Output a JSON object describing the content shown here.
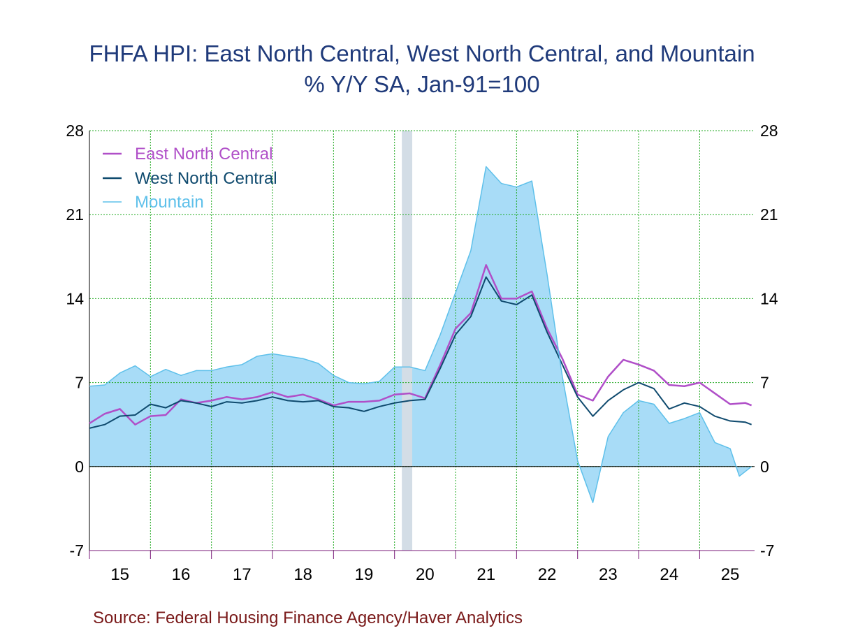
{
  "chart_data": {
    "type": "line",
    "title": "FHFA HPI: East North Central, West North Central, and Mountain",
    "subtitle": "% Y/Y      SA, Jan-91=100",
    "source": "Source:  Federal Housing Finance Agency/Haver Analytics",
    "x_tick_labels": [
      "15",
      "16",
      "17",
      "18",
      "19",
      "20",
      "21",
      "22",
      "23",
      "24",
      "25"
    ],
    "x_range": [
      2015.0,
      2025.9
    ],
    "ylim": [
      -7,
      28
    ],
    "y_ticks": [
      28,
      21,
      14,
      7,
      0,
      -7
    ],
    "y_tick_labels": [
      "28",
      "21",
      "14",
      "7",
      "0",
      "-7"
    ],
    "grid": true,
    "legend_position": "top-left",
    "recession_band": [
      2020.12,
      2020.29
    ],
    "colors": {
      "east_north_central": "#b04fc8",
      "west_north_central": "#0f4a6e",
      "mountain_line": "#5ec0ea",
      "mountain_fill": "#a8dcf7",
      "recession": "#d3dde6",
      "grid": "#22aa22",
      "title": "#1f3a7a",
      "source": "#7a1a1a"
    },
    "series": [
      {
        "name": "East North Central",
        "key": "east_north_central",
        "points": [
          [
            2015.0,
            3.6
          ],
          [
            2015.25,
            4.4
          ],
          [
            2015.5,
            4.8
          ],
          [
            2015.75,
            3.5
          ],
          [
            2016.0,
            4.2
          ],
          [
            2016.25,
            4.3
          ],
          [
            2016.5,
            5.6
          ],
          [
            2016.75,
            5.3
          ],
          [
            2017.0,
            5.5
          ],
          [
            2017.25,
            5.8
          ],
          [
            2017.5,
            5.6
          ],
          [
            2017.75,
            5.8
          ],
          [
            2018.0,
            6.2
          ],
          [
            2018.25,
            5.8
          ],
          [
            2018.5,
            6.0
          ],
          [
            2018.75,
            5.6
          ],
          [
            2019.0,
            5.1
          ],
          [
            2019.25,
            5.4
          ],
          [
            2019.5,
            5.4
          ],
          [
            2019.75,
            5.5
          ],
          [
            2020.0,
            6.0
          ],
          [
            2020.25,
            6.1
          ],
          [
            2020.5,
            5.7
          ],
          [
            2020.75,
            8.5
          ],
          [
            2021.0,
            11.5
          ],
          [
            2021.25,
            12.8
          ],
          [
            2021.5,
            16.8
          ],
          [
            2021.75,
            14.0
          ],
          [
            2022.0,
            14.0
          ],
          [
            2022.25,
            14.6
          ],
          [
            2022.5,
            11.5
          ],
          [
            2022.75,
            9.0
          ],
          [
            2023.0,
            6.0
          ],
          [
            2023.25,
            5.5
          ],
          [
            2023.5,
            7.5
          ],
          [
            2023.75,
            8.9
          ],
          [
            2024.0,
            8.5
          ],
          [
            2024.25,
            8.0
          ],
          [
            2024.5,
            6.8
          ],
          [
            2024.75,
            6.7
          ],
          [
            2025.0,
            7.0
          ],
          [
            2025.25,
            6.1
          ],
          [
            2025.5,
            5.2
          ],
          [
            2025.75,
            5.3
          ],
          [
            2025.85,
            5.1
          ]
        ]
      },
      {
        "name": "West North Central",
        "key": "west_north_central",
        "points": [
          [
            2015.0,
            3.2
          ],
          [
            2015.25,
            3.5
          ],
          [
            2015.5,
            4.2
          ],
          [
            2015.75,
            4.3
          ],
          [
            2016.0,
            5.2
          ],
          [
            2016.25,
            4.9
          ],
          [
            2016.5,
            5.5
          ],
          [
            2016.75,
            5.3
          ],
          [
            2017.0,
            5.0
          ],
          [
            2017.25,
            5.4
          ],
          [
            2017.5,
            5.3
          ],
          [
            2017.75,
            5.5
          ],
          [
            2018.0,
            5.8
          ],
          [
            2018.25,
            5.5
          ],
          [
            2018.5,
            5.4
          ],
          [
            2018.75,
            5.5
          ],
          [
            2019.0,
            5.0
          ],
          [
            2019.25,
            4.9
          ],
          [
            2019.5,
            4.6
          ],
          [
            2019.75,
            5.0
          ],
          [
            2020.0,
            5.3
          ],
          [
            2020.25,
            5.5
          ],
          [
            2020.5,
            5.6
          ],
          [
            2020.75,
            8.2
          ],
          [
            2021.0,
            11.0
          ],
          [
            2021.25,
            12.5
          ],
          [
            2021.5,
            15.8
          ],
          [
            2021.75,
            13.8
          ],
          [
            2022.0,
            13.5
          ],
          [
            2022.25,
            14.3
          ],
          [
            2022.5,
            11.2
          ],
          [
            2022.75,
            8.5
          ],
          [
            2023.0,
            5.8
          ],
          [
            2023.25,
            4.2
          ],
          [
            2023.5,
            5.5
          ],
          [
            2023.75,
            6.4
          ],
          [
            2024.0,
            7.0
          ],
          [
            2024.25,
            6.5
          ],
          [
            2024.5,
            4.8
          ],
          [
            2024.75,
            5.3
          ],
          [
            2025.0,
            5.0
          ],
          [
            2025.25,
            4.2
          ],
          [
            2025.5,
            3.8
          ],
          [
            2025.75,
            3.7
          ],
          [
            2025.85,
            3.5
          ]
        ]
      },
      {
        "name": "Mountain",
        "key": "mountain",
        "fill": true,
        "points": [
          [
            2015.0,
            6.7
          ],
          [
            2015.25,
            6.8
          ],
          [
            2015.5,
            7.8
          ],
          [
            2015.75,
            8.4
          ],
          [
            2016.0,
            7.5
          ],
          [
            2016.25,
            8.1
          ],
          [
            2016.5,
            7.6
          ],
          [
            2016.75,
            8.0
          ],
          [
            2017.0,
            8.0
          ],
          [
            2017.25,
            8.3
          ],
          [
            2017.5,
            8.5
          ],
          [
            2017.75,
            9.2
          ],
          [
            2018.0,
            9.4
          ],
          [
            2018.25,
            9.2
          ],
          [
            2018.5,
            9.0
          ],
          [
            2018.75,
            8.6
          ],
          [
            2019.0,
            7.6
          ],
          [
            2019.25,
            7.0
          ],
          [
            2019.5,
            6.9
          ],
          [
            2019.75,
            7.1
          ],
          [
            2020.0,
            8.3
          ],
          [
            2020.25,
            8.3
          ],
          [
            2020.5,
            8.0
          ],
          [
            2020.75,
            11.0
          ],
          [
            2021.0,
            14.5
          ],
          [
            2021.25,
            18.0
          ],
          [
            2021.5,
            25.0
          ],
          [
            2021.75,
            23.6
          ],
          [
            2022.0,
            23.3
          ],
          [
            2022.25,
            23.8
          ],
          [
            2022.5,
            16.0
          ],
          [
            2022.75,
            7.5
          ],
          [
            2023.0,
            0.5
          ],
          [
            2023.25,
            -3.0
          ],
          [
            2023.5,
            2.5
          ],
          [
            2023.75,
            4.5
          ],
          [
            2024.0,
            5.5
          ],
          [
            2024.25,
            5.2
          ],
          [
            2024.5,
            3.6
          ],
          [
            2024.75,
            4.0
          ],
          [
            2025.0,
            4.5
          ],
          [
            2025.25,
            2.0
          ],
          [
            2025.5,
            1.5
          ],
          [
            2025.65,
            -0.8
          ],
          [
            2025.85,
            0.0
          ]
        ]
      }
    ]
  }
}
